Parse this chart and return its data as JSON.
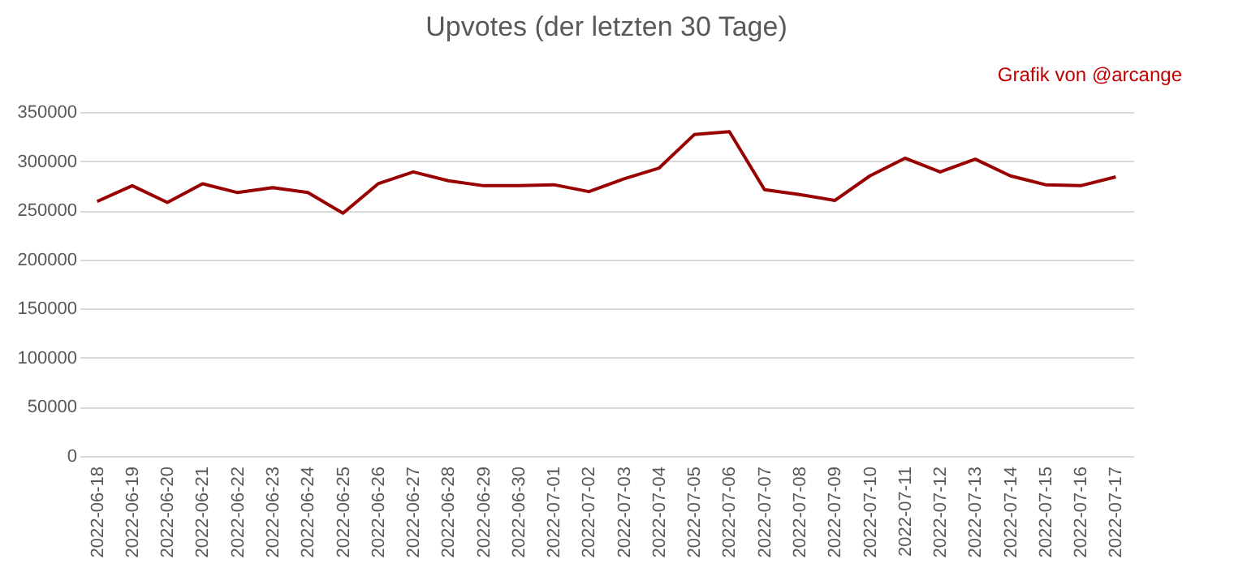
{
  "chart_data": {
    "type": "line",
    "title": "Upvotes (der letzten 30 Tage)",
    "annotations": [
      "Grafik von @arcange"
    ],
    "categories": [
      "2022-06-18",
      "2022-06-19",
      "2022-06-20",
      "2022-06-21",
      "2022-06-22",
      "2022-06-23",
      "2022-06-24",
      "2022-06-25",
      "2022-06-26",
      "2022-06-27",
      "2022-06-28",
      "2022-06-29",
      "2022-06-30",
      "2022-07-01",
      "2022-07-02",
      "2022-07-03",
      "2022-07-04",
      "2022-07-05",
      "2022-07-06",
      "2022-07-07",
      "2022-07-08",
      "2022-07-09",
      "2022-07-10",
      "2022-07-11",
      "2022-07-12",
      "2022-07-13",
      "2022-07-14",
      "2022-07-15",
      "2022-07-16",
      "2022-07-17"
    ],
    "series": [
      {
        "color": "#990000",
        "values": [
          259000,
          275000,
          258000,
          277000,
          268000,
          273000,
          268000,
          247000,
          277000,
          289000,
          280000,
          275000,
          275000,
          276000,
          269000,
          282000,
          293000,
          327000,
          330000,
          271000,
          266000,
          260000,
          285000,
          303000,
          289000,
          302000,
          285000,
          276000,
          275000,
          284000
        ]
      }
    ],
    "ylim": [
      0,
      350000
    ],
    "yticks": [
      0,
      50000,
      100000,
      150000,
      200000,
      250000,
      300000,
      350000
    ],
    "grid": "y",
    "legend": false,
    "marker": "none",
    "line_style": "solid"
  }
}
